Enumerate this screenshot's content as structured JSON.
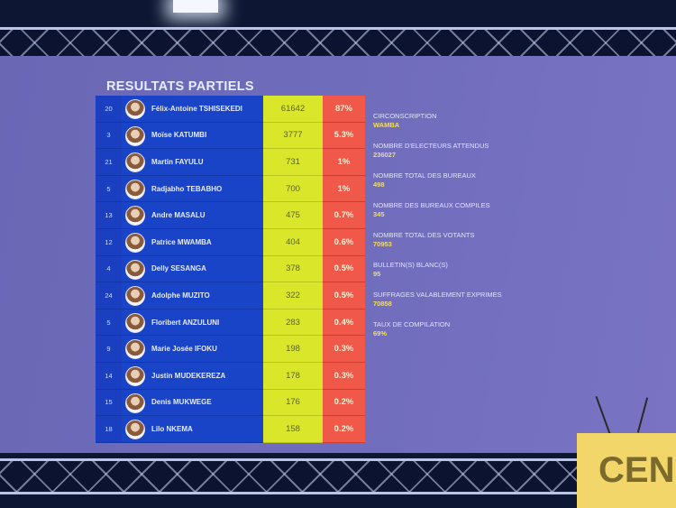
{
  "title": "RESULTATS PARTIELS",
  "candidates": [
    {
      "number": "20",
      "name": "Félix-Antoine TSHISEKEDI",
      "votes": "61642",
      "percent": "87%"
    },
    {
      "number": "3",
      "name": "Moïse KATUMBI",
      "votes": "3777",
      "percent": "5.3%"
    },
    {
      "number": "21",
      "name": "Martin FAYULU",
      "votes": "731",
      "percent": "1%"
    },
    {
      "number": "5",
      "name": "Radjabho TEBABHO",
      "votes": "700",
      "percent": "1%"
    },
    {
      "number": "13",
      "name": "Andre MASALU",
      "votes": "475",
      "percent": "0.7%"
    },
    {
      "number": "12",
      "name": "Patrice MWAMBA",
      "votes": "404",
      "percent": "0.6%"
    },
    {
      "number": "4",
      "name": "Delly SESANGA",
      "votes": "378",
      "percent": "0.5%"
    },
    {
      "number": "24",
      "name": "Adolphe MUZITO",
      "votes": "322",
      "percent": "0.5%"
    },
    {
      "number": "5",
      "name": "Floribert ANZULUNI",
      "votes": "283",
      "percent": "0.4%"
    },
    {
      "number": "9",
      "name": "Marie Josée IFOKU",
      "votes": "198",
      "percent": "0.3%"
    },
    {
      "number": "14",
      "name": "Justin MUDEKEREZA",
      "votes": "178",
      "percent": "0.3%"
    },
    {
      "number": "15",
      "name": "Denis MUKWEGE",
      "votes": "176",
      "percent": "0.2%"
    },
    {
      "number": "18",
      "name": "Lilo NKEMA",
      "votes": "158",
      "percent": "0.2%"
    }
  ],
  "info": [
    {
      "label": "CIRCONSCRIPTION",
      "value": "WAMBA"
    },
    {
      "label": "NOMBRE D'ELECTEURS ATTENDUS",
      "value": "236027"
    },
    {
      "label": "NOMBRE TOTAL DES BUREAUX",
      "value": "498"
    },
    {
      "label": "NOMBRE DES BUREAUX COMPILES",
      "value": "345"
    },
    {
      "label": "NOMBRE TOTAL DES VOTANTS",
      "value": "70953"
    },
    {
      "label": "BULLETIN(S) BLANC(S)",
      "value": "95"
    },
    {
      "label": "SUFFRAGES VALABLEMENT EXPRIMES",
      "value": "70858"
    },
    {
      "label": "TAUX DE COMPILATION",
      "value": "69%"
    }
  ],
  "podium_text": "CEN",
  "colors": {
    "votes": "#d9e62a",
    "percent": "#f0584a",
    "table": "#1a44c8",
    "screen": "#6f6cbb"
  }
}
